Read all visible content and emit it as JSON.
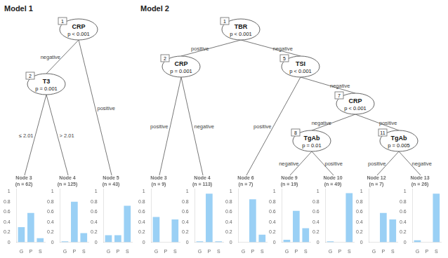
{
  "chart_data": [
    {
      "type": "bar",
      "title": "Node 3 (n = 62)",
      "categories": [
        "G",
        "P",
        "S"
      ],
      "values": [
        0.3,
        0.58,
        0.08
      ],
      "ylim": [
        0,
        1.05
      ],
      "yticks": [
        0,
        0.2,
        0.4,
        0.6,
        0.8,
        1
      ],
      "grid": false,
      "annotations": [
        "Model 1",
        "1",
        "CRP",
        "p < 0.001",
        "2",
        "T3",
        "p = 0.001",
        "negative",
        "positive",
        "≤ 2.01",
        "> 2.01"
      ]
    },
    {
      "type": "bar",
      "title": "Node 4 (n = 125)",
      "categories": [
        "G",
        "P",
        "S"
      ],
      "values": [
        0.02,
        0.8,
        0.18
      ],
      "ylim": [
        0,
        1.05
      ],
      "yticks": [
        0,
        0.2,
        0.4,
        0.6,
        0.8,
        1
      ],
      "grid": false
    },
    {
      "type": "bar",
      "title": "Node 5 (n = 43)",
      "categories": [
        "G",
        "P",
        "S"
      ],
      "values": [
        0.14,
        0.14,
        0.72
      ],
      "ylim": [
        0,
        1.05
      ],
      "yticks": [
        0,
        0.2,
        0.4,
        0.6,
        0.8,
        1
      ],
      "grid": false
    },
    {
      "type": "bar",
      "title": "Node 3 (n = 9)",
      "categories": [
        "G",
        "P",
        "S"
      ],
      "values": [
        0.5,
        0.0,
        0.45
      ],
      "ylim": [
        0,
        1.05
      ],
      "yticks": [
        0,
        0.2,
        0.4,
        0.6,
        0.8,
        1
      ],
      "grid": false,
      "annotations": [
        "Model 2",
        "1",
        "TBR",
        "p < 0.001",
        "2",
        "CRP",
        "p = 0.001",
        "5",
        "TSI",
        "p < 0.001",
        "7",
        "CRP",
        "p < 0.001",
        "8",
        "TgAb",
        "p = 0.01",
        "11",
        "TgAb",
        "p = 0.005",
        "positive",
        "negative",
        "positive",
        "negative",
        "positive",
        "negative",
        "negative",
        "positive",
        "negative",
        "positive",
        "positive",
        "negative"
      ]
    },
    {
      "type": "bar",
      "title": "Node 4 (n = 113)",
      "categories": [
        "G",
        "P",
        "S"
      ],
      "values": [
        0.02,
        0.96,
        0.02
      ],
      "ylim": [
        0,
        1.05
      ],
      "yticks": [
        0,
        0.2,
        0.4,
        0.6,
        0.8,
        1
      ],
      "grid": false
    },
    {
      "type": "bar",
      "title": "Node 6 (n = 7)",
      "categories": [
        "G",
        "P",
        "S"
      ],
      "values": [
        0.0,
        0.85,
        0.15
      ],
      "ylim": [
        0,
        1.05
      ],
      "yticks": [
        0,
        0.2,
        0.4,
        0.6,
        0.8,
        1
      ],
      "grid": false
    },
    {
      "type": "bar",
      "title": "Node 9 (n = 19)",
      "categories": [
        "G",
        "P",
        "S"
      ],
      "values": [
        0.05,
        0.62,
        0.28
      ],
      "ylim": [
        0,
        1.05
      ],
      "yticks": [
        0,
        0.2,
        0.4,
        0.6,
        0.8,
        1
      ],
      "grid": false
    },
    {
      "type": "bar",
      "title": "Node 10 (n = 49)",
      "categories": [
        "G",
        "P",
        "S"
      ],
      "values": [
        0.02,
        0.0,
        0.97
      ],
      "ylim": [
        0,
        1.05
      ],
      "yticks": [
        0,
        0.2,
        0.4,
        0.6,
        0.8,
        1
      ],
      "grid": false
    },
    {
      "type": "bar",
      "title": "Node 12 (n = 7)",
      "categories": [
        "G",
        "P",
        "S"
      ],
      "values": [
        0.0,
        0.58,
        0.45
      ],
      "ylim": [
        0,
        1.05
      ],
      "yticks": [
        0,
        0.2,
        0.4,
        0.6,
        0.8,
        1
      ],
      "grid": false
    },
    {
      "type": "bar",
      "title": "Node 13 (n = 26)",
      "categories": [
        "G",
        "P",
        "S"
      ],
      "values": [
        0.04,
        0.0,
        0.96
      ],
      "ylim": [
        0,
        1.05
      ],
      "yticks": [
        0,
        0.2,
        0.4,
        0.6,
        0.8,
        1
      ],
      "grid": false
    }
  ]
}
